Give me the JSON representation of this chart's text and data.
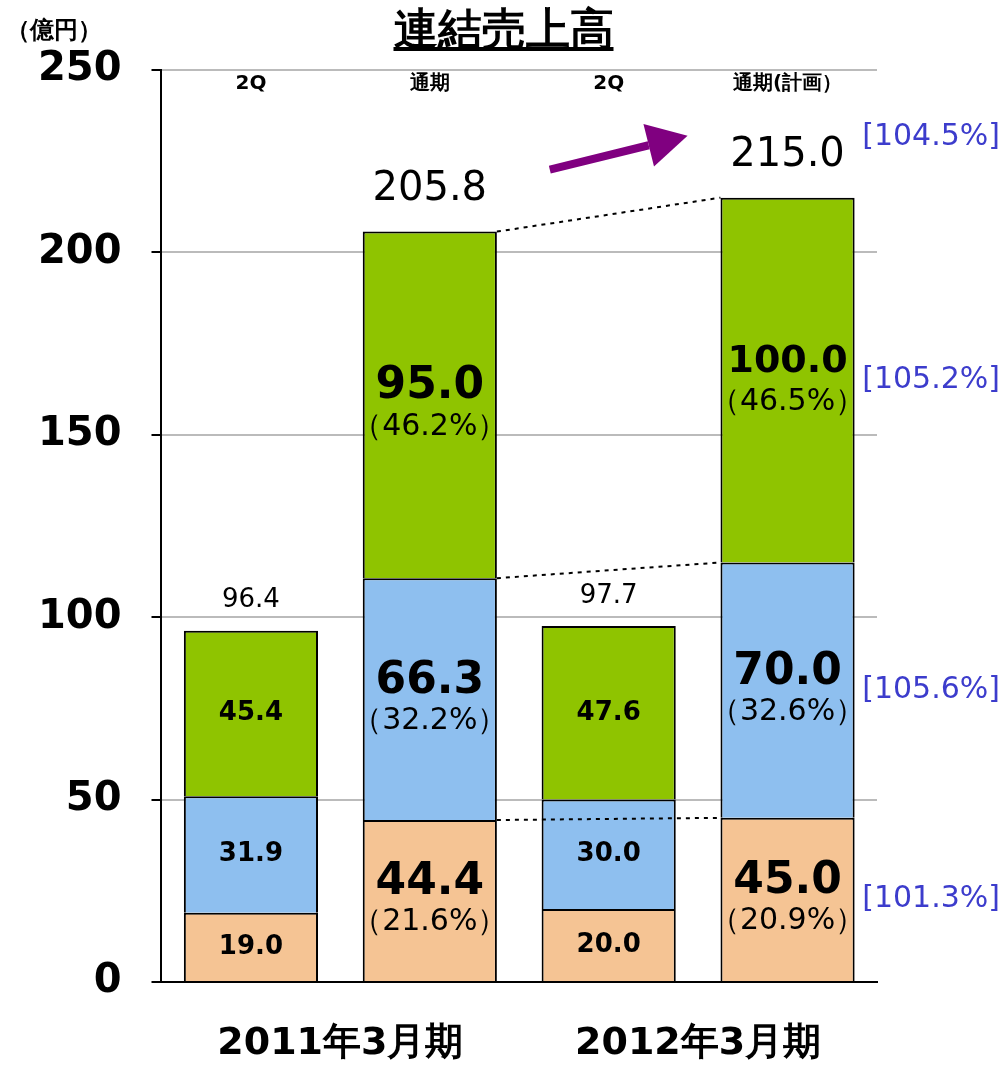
{
  "chart_data": {
    "type": "bar",
    "title": "連結売上高",
    "ylabel": "（億円）",
    "stacked": true,
    "categories": [
      "2Q",
      "通期",
      "2Q",
      "通期(計画）"
    ],
    "series": [
      {
        "color": "#f5c494",
        "values": [
          19.0,
          44.4,
          20.0,
          45.0
        ],
        "value_labels": [
          "19.0",
          "44.4\n（21.6%）",
          "20.0",
          "45.0\n（20.9%）"
        ]
      },
      {
        "color": "#8ebfef",
        "values": [
          31.9,
          66.3,
          30.0,
          70.0
        ],
        "value_labels": [
          "31.9",
          "66.3\n（32.2%）",
          "30.0",
          "70.0\n（32.6%）"
        ]
      },
      {
        "color": "#8fc400",
        "values": [
          45.4,
          95.0,
          47.6,
          100.0
        ],
        "value_labels": [
          "45.4",
          "95.0\n（46.2%）",
          "47.6",
          "100.0\n（46.5%）"
        ]
      }
    ],
    "totals": [
      "96.4",
      "205.8",
      "97.7",
      "215.0"
    ],
    "ylim": [
      0,
      250
    ],
    "yticks": [
      0,
      50,
      100,
      150,
      200,
      250
    ],
    "grid": "y",
    "legend": false,
    "annotations": [
      "2011年3月期",
      "2012年3月期",
      "[101.3%]",
      "[105.6%]",
      "[105.2%]",
      "[104.5%]"
    ]
  }
}
